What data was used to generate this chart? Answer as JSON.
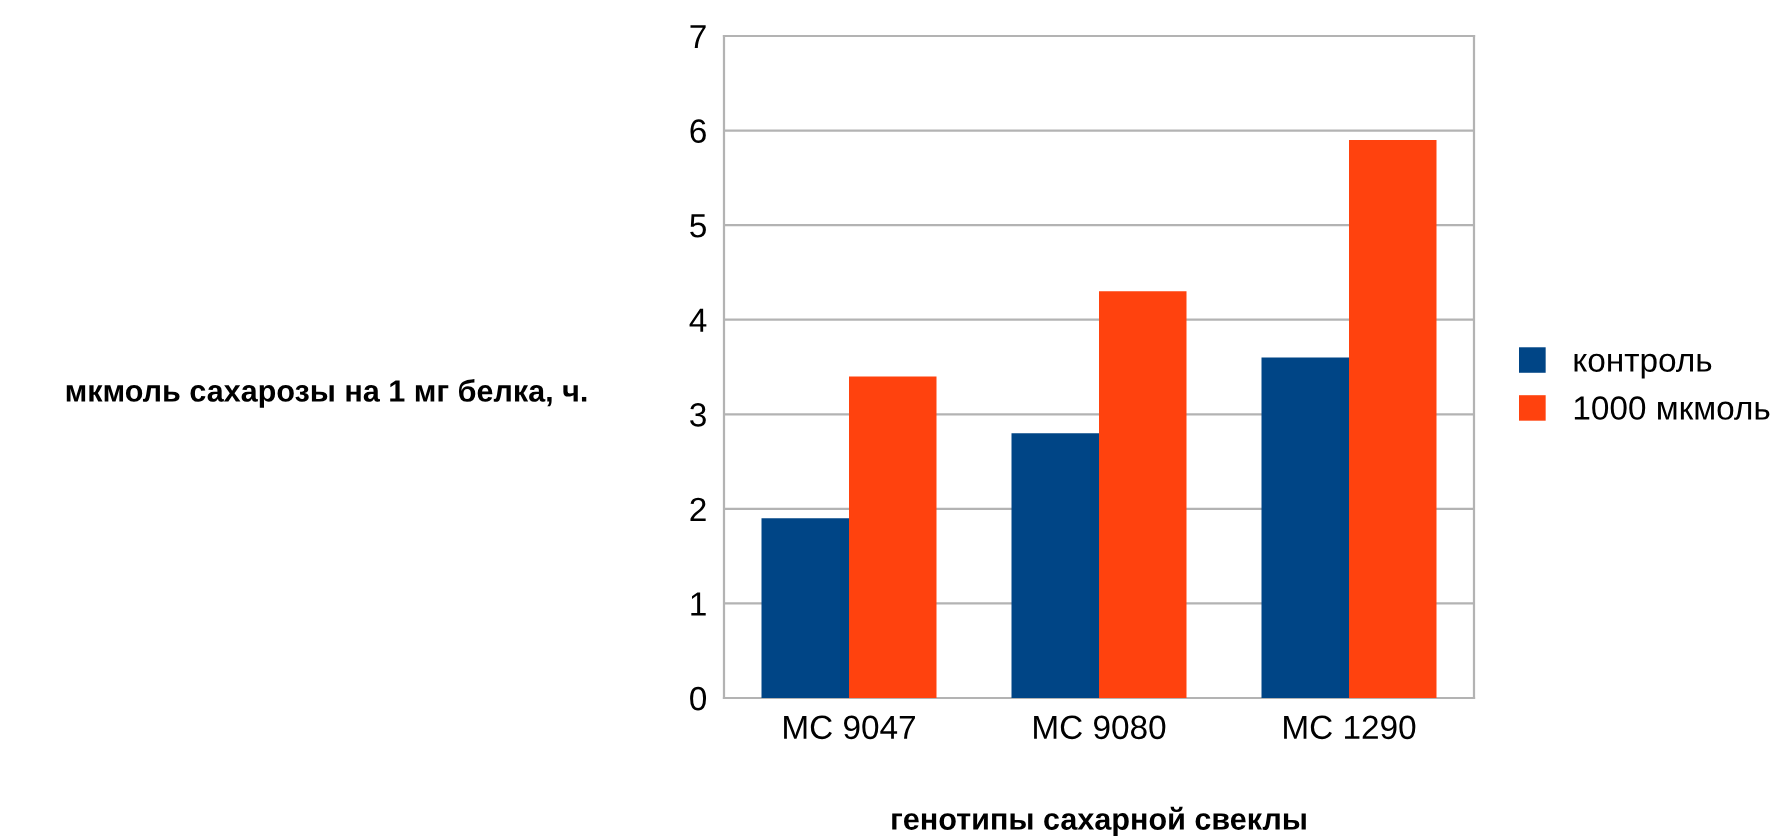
{
  "chart_data": {
    "type": "bar",
    "xlabel": "генотипы сахарной свеклы",
    "ylabel": "мкмоль сахарозы на 1 мг белка, ч.",
    "categories": [
      "МС 9047",
      "МС 9080",
      "МС 1290"
    ],
    "series": [
      {
        "name": "контроль",
        "color": "#004586",
        "values": [
          1.9,
          2.8,
          3.6
        ]
      },
      {
        "name": "1000 мкмоль",
        "color": "#ff420e",
        "values": [
          3.4,
          4.3,
          5.9
        ]
      }
    ],
    "ylim": [
      0,
      7
    ],
    "yticks": [
      0,
      1,
      2,
      3,
      4,
      5,
      6,
      7
    ],
    "grid": "y",
    "legend": "right"
  }
}
